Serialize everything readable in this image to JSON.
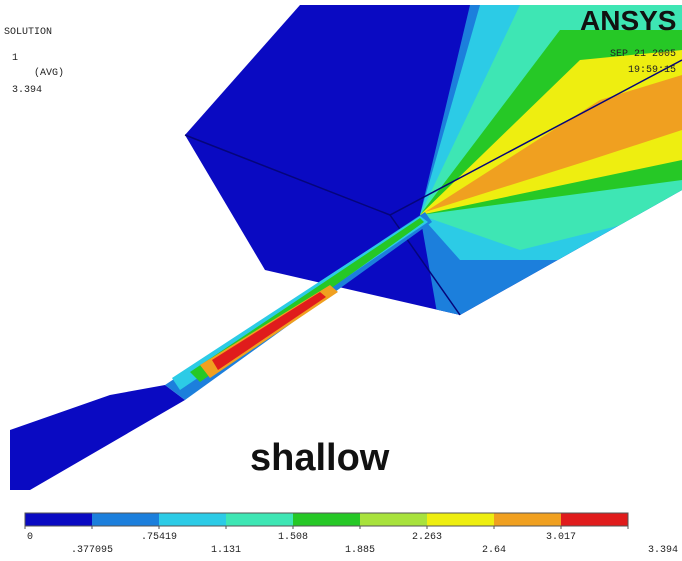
{
  "header": {
    "label": "SOLUTION",
    "step": "1",
    "avg": "(AVG)",
    "max": "3.394",
    "logo": "ANSYS",
    "date": "SEP 21 2005",
    "time": "19:59:15"
  },
  "caption": "shallow",
  "legend": {
    "colors": [
      "#0a0ac2",
      "#1c7fdc",
      "#2ccbe6",
      "#3ee6b4",
      "#26c826",
      "#a8e23c",
      "#eeee10",
      "#f0a020",
      "#e01c1c"
    ],
    "ticks": [
      {
        "value": 0,
        "label": "0"
      },
      {
        "value": 0.377095,
        "label": ".377095"
      },
      {
        "value": 0.75419,
        "label": ".75419"
      },
      {
        "value": 1.131,
        "label": "1.131"
      },
      {
        "value": 1.508,
        "label": "1.508"
      },
      {
        "value": 1.885,
        "label": "1.885"
      },
      {
        "value": 2.263,
        "label": "2.263"
      },
      {
        "value": 2.64,
        "label": "2.64"
      },
      {
        "value": 3.017,
        "label": "3.017"
      },
      {
        "value": 3.394,
        "label": "3.394"
      }
    ]
  }
}
